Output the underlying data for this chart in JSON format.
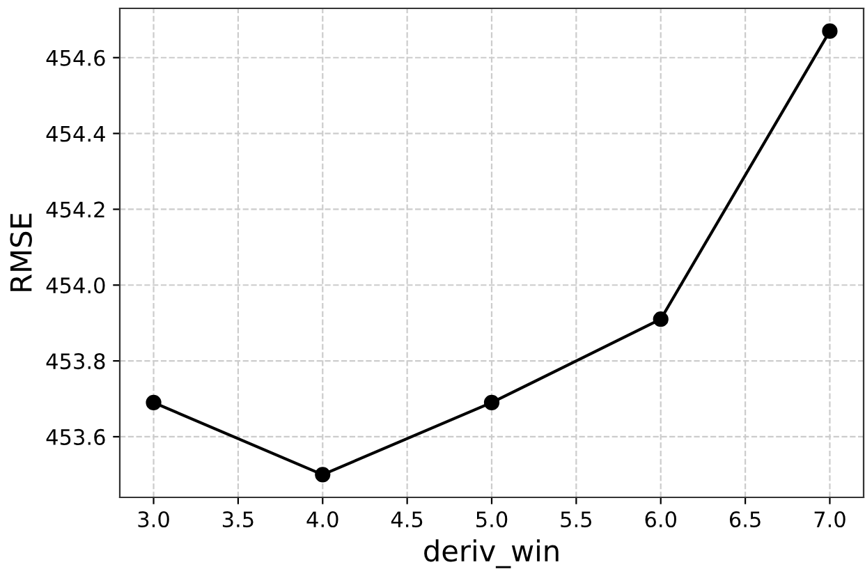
{
  "chart_data": {
    "type": "line",
    "xlabel": "deriv_win",
    "ylabel": "RMSE",
    "x": [
      3.0,
      4.0,
      5.0,
      6.0,
      7.0
    ],
    "series": [
      {
        "color": "#000000",
        "values": [
          453.69,
          453.5,
          453.69,
          453.91,
          454.67
        ]
      }
    ],
    "xlim": [
      2.8,
      7.2
    ],
    "ylim": [
      453.44,
      454.73
    ],
    "xticks": [
      {
        "value": 3,
        "label": "3.0"
      },
      {
        "value": 3.5,
        "label": "3.5"
      },
      {
        "value": 4,
        "label": "4.0"
      },
      {
        "value": 4.5,
        "label": "4.5"
      },
      {
        "value": 5,
        "label": "5.0"
      },
      {
        "value": 5.5,
        "label": "5.5"
      },
      {
        "value": 6,
        "label": "6.0"
      },
      {
        "value": 6.5,
        "label": "6.5"
      },
      {
        "value": 7,
        "label": "7.0"
      }
    ],
    "yticks": [
      453.6,
      453.8,
      {
        "value": 454.0,
        "label": "454.0"
      },
      454.2,
      454.4,
      454.6
    ],
    "grid": true,
    "marker": "circle",
    "line_style": "solid"
  }
}
